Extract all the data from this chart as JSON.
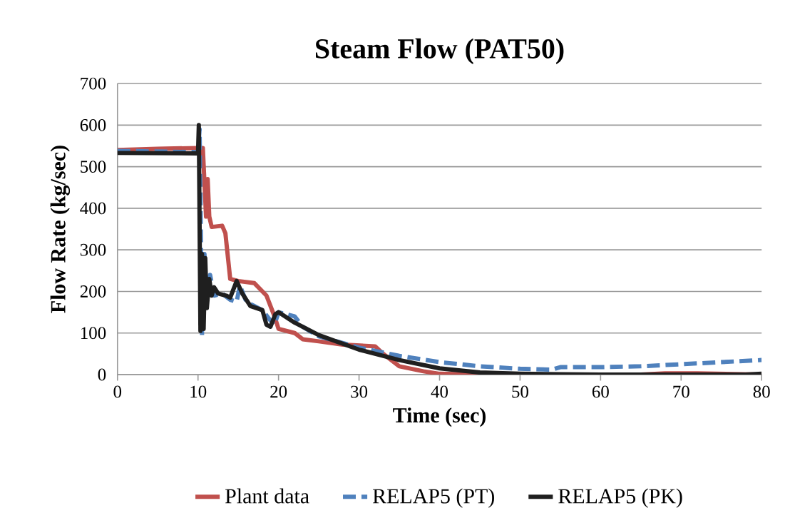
{
  "chart_data": {
    "type": "line",
    "title": "Steam Flow (PAT50)",
    "xlabel": "Time (sec)",
    "ylabel": "Flow Rate (kg/sec)",
    "xlim": [
      0,
      80
    ],
    "ylim": [
      0,
      700
    ],
    "xticks": [
      0,
      10,
      20,
      30,
      40,
      50,
      60,
      70,
      80
    ],
    "yticks": [
      0,
      100,
      200,
      300,
      400,
      500,
      600,
      700
    ],
    "grid": "y",
    "legend": "bottom",
    "marker": "none",
    "series": [
      {
        "name": "Plant data",
        "color": "#c0504d",
        "line_style": "solid",
        "x": [
          0,
          5,
          10,
          10.6,
          11,
          11.2,
          11.4,
          11.7,
          13,
          13.4,
          14,
          15,
          17,
          18.5,
          19.5,
          20,
          22,
          23,
          25,
          28,
          32,
          33,
          35,
          38,
          40,
          45,
          60,
          65,
          68,
          72,
          80
        ],
        "values": [
          540,
          543,
          545,
          545,
          380,
          470,
          380,
          355,
          358,
          340,
          230,
          225,
          220,
          190,
          140,
          110,
          100,
          85,
          80,
          72,
          68,
          50,
          20,
          8,
          2,
          0,
          0,
          0,
          3,
          3,
          0
        ]
      },
      {
        "name": "RELAP5 (PT)",
        "color": "#4f81bd",
        "line_style": "dashed",
        "x": [
          0,
          10,
          10.2,
          10.5,
          10.8,
          11.1,
          11.5,
          12,
          13,
          14,
          14.8,
          15.2,
          16,
          17,
          18,
          19,
          19.5,
          20,
          22,
          23,
          25,
          30,
          35,
          40,
          45,
          50,
          54,
          55,
          60,
          65,
          70,
          75,
          80
        ],
        "values": [
          538,
          535,
          590,
          95,
          290,
          170,
          240,
          190,
          195,
          180,
          175,
          215,
          175,
          165,
          155,
          130,
          120,
          150,
          140,
          115,
          92,
          65,
          45,
          30,
          20,
          14,
          12,
          18,
          18,
          20,
          25,
          30,
          35
        ]
      },
      {
        "name": "RELAP5 (PK)",
        "color": "#1f1f1f",
        "line_style": "solid",
        "x": [
          0,
          10,
          10.1,
          10.3,
          10.5,
          10.7,
          10.9,
          11.1,
          11.4,
          11.7,
          12,
          12.5,
          13.5,
          14,
          14.8,
          15.5,
          16.5,
          18,
          18.5,
          19,
          19.6,
          20,
          22,
          25,
          30,
          35,
          40,
          45,
          50,
          55,
          60,
          70,
          78,
          80
        ],
        "values": [
          533,
          532,
          600,
          105,
          290,
          110,
          280,
          160,
          230,
          190,
          210,
          195,
          190,
          185,
          225,
          195,
          165,
          155,
          120,
          115,
          145,
          150,
          125,
          95,
          60,
          35,
          15,
          5,
          2,
          1,
          0,
          0,
          0,
          2
        ]
      }
    ]
  }
}
